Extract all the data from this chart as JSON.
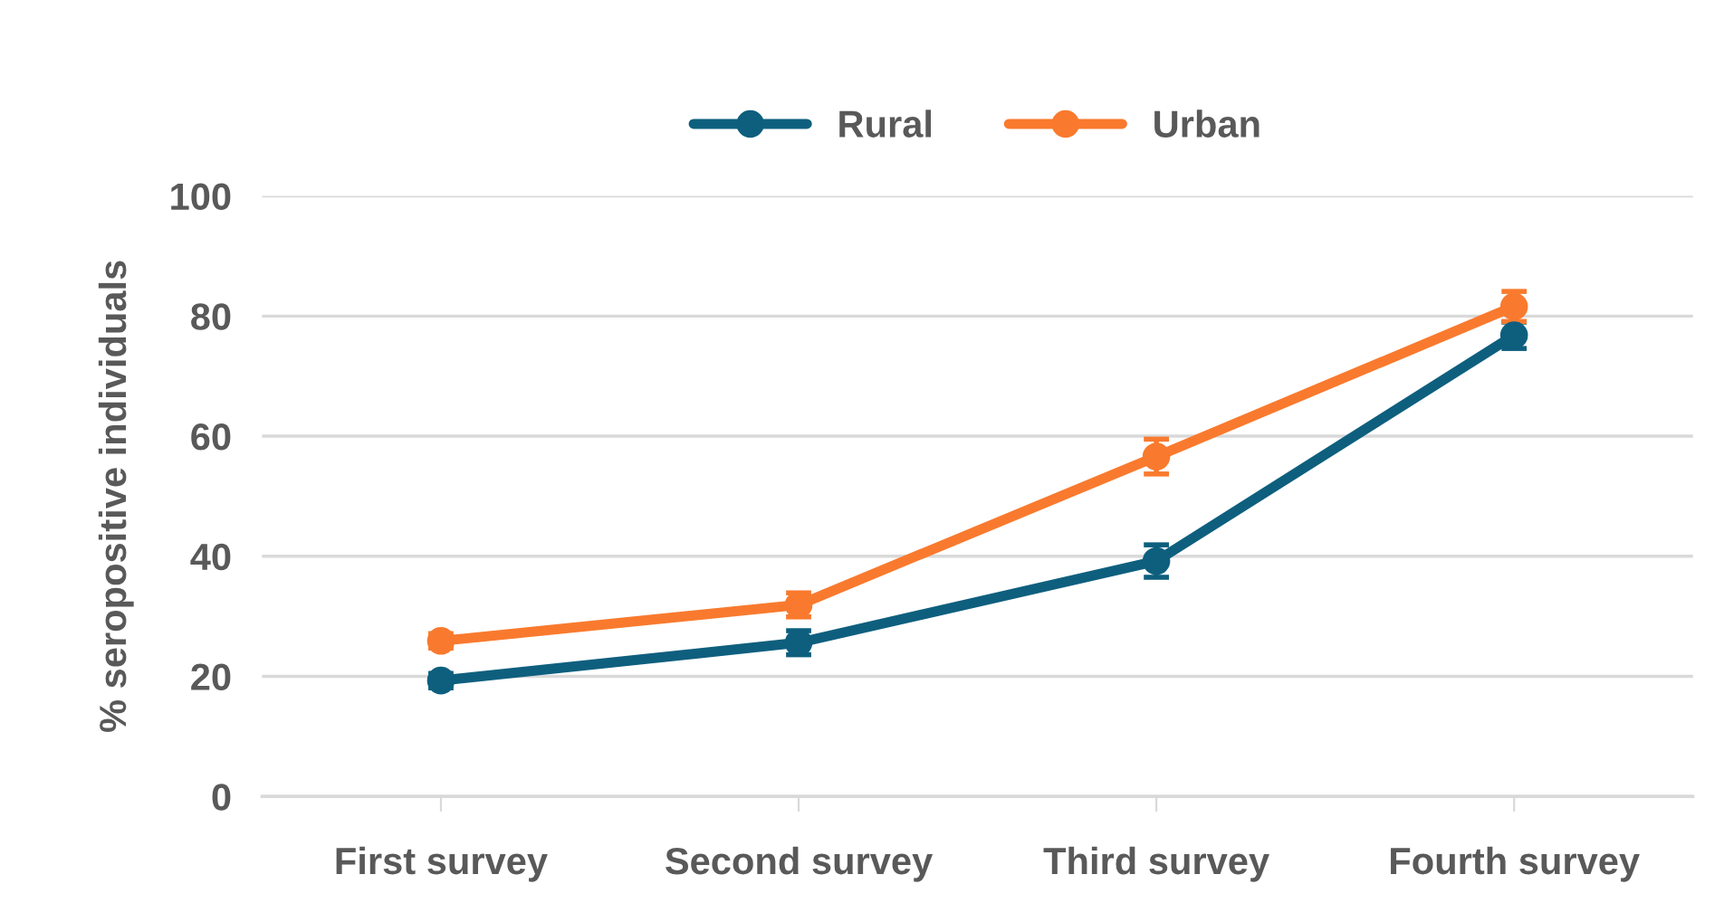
{
  "chart_data": {
    "type": "line",
    "ylabel": "% seropositive individuals",
    "categories": [
      "First survey",
      "Second survey",
      "Third survey",
      "Fourth survey"
    ],
    "series": [
      {
        "name": "Rural",
        "color": "#0e5f7e",
        "values": [
          19.3,
          25.6,
          39.2,
          76.8
        ],
        "errors": [
          1.2,
          2.0,
          2.7,
          2.2
        ]
      },
      {
        "name": "Urban",
        "color": "#f97a2e",
        "values": [
          25.9,
          31.9,
          56.6,
          81.6
        ],
        "errors": [
          1.2,
          2.0,
          2.9,
          2.5
        ]
      }
    ],
    "ylim": [
      0,
      100
    ],
    "yticks": [
      0,
      20,
      40,
      60,
      80,
      100
    ],
    "grid": "y",
    "legend": "top",
    "marker": "circle",
    "line_style": "solid"
  }
}
